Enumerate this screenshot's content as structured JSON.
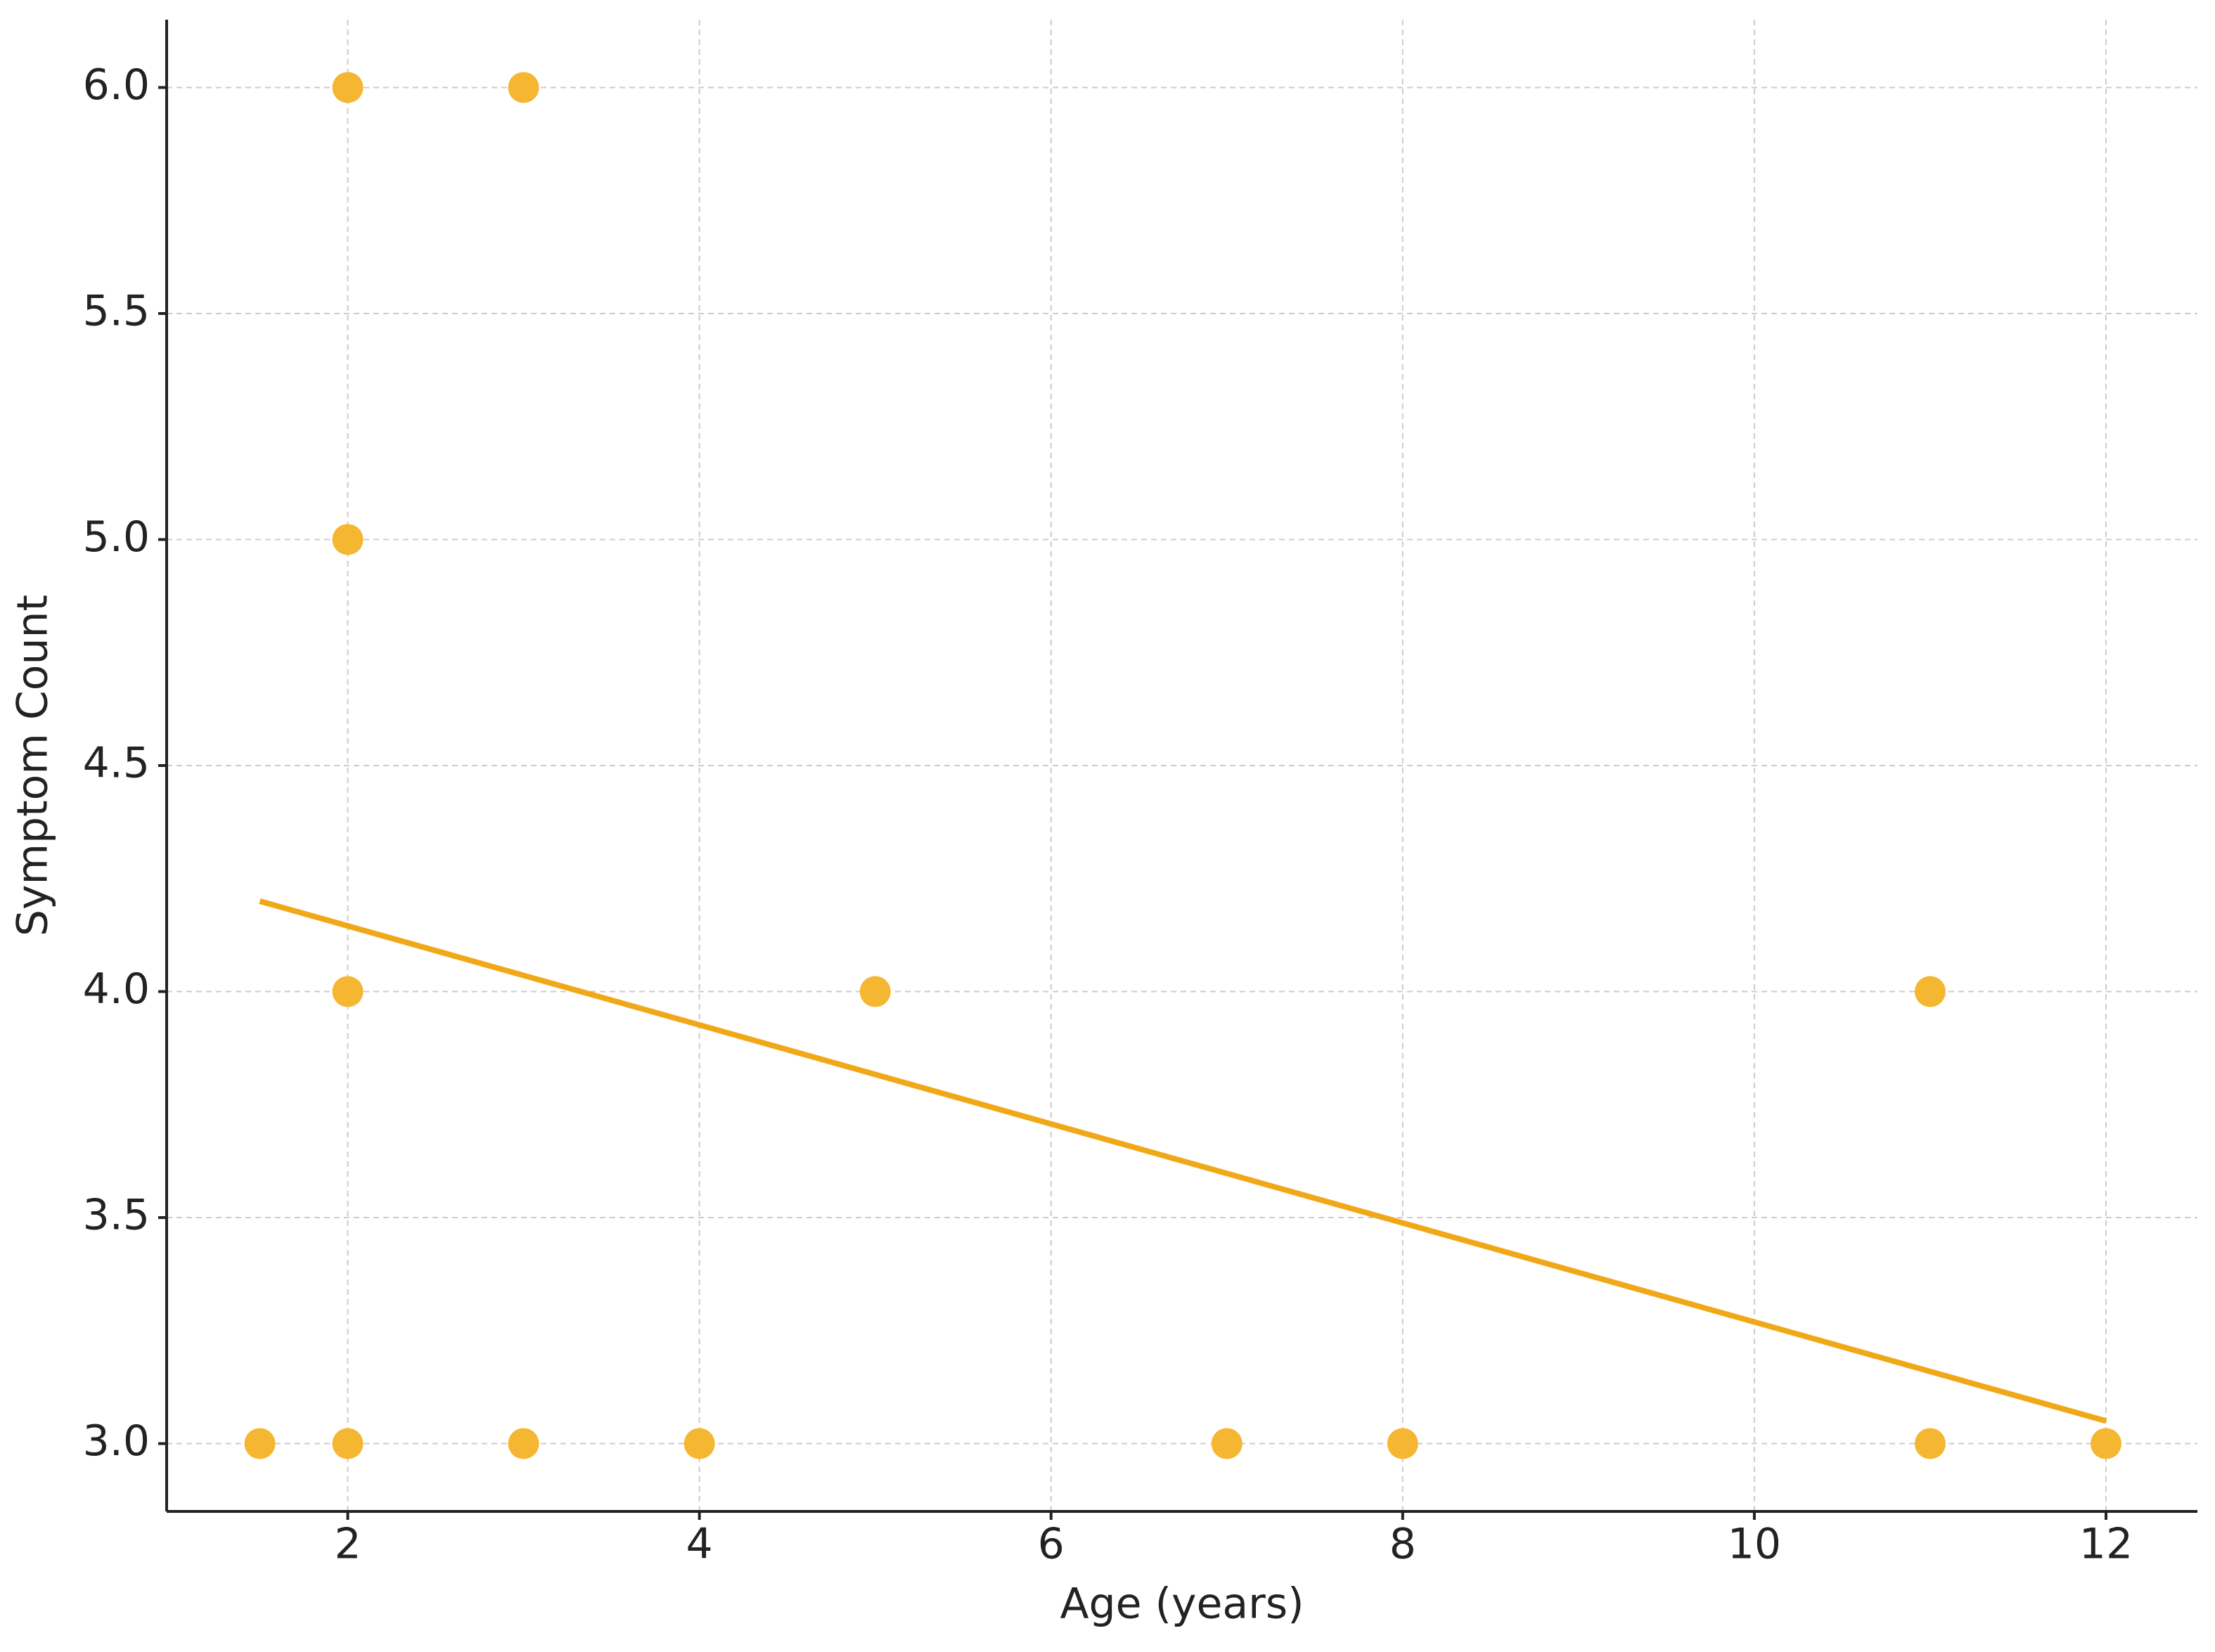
{
  "chart_data": {
    "type": "scatter",
    "xlabel": "Age (years)",
    "ylabel": "Symptom Count",
    "x": [
      1.5,
      2,
      2,
      2,
      2,
      3,
      3,
      4,
      5,
      7,
      8,
      11,
      11,
      12
    ],
    "values": [
      3,
      3,
      4,
      5,
      6,
      6,
      3,
      3,
      4,
      3,
      3,
      4,
      3,
      3
    ],
    "color": "#f5b731",
    "trendline": {
      "x": [
        1.5,
        12
      ],
      "values": [
        4.2,
        3.05
      ],
      "color": "#f0a818"
    },
    "xlim": [
      0.97,
      12.52
    ],
    "ylim": [
      2.85,
      6.15
    ],
    "xticks": [
      2,
      4,
      6,
      8,
      10,
      12
    ],
    "yticks": [
      {
        "value": 3,
        "label": "3.0"
      },
      {
        "value": 3.5,
        "label": "3.5"
      },
      {
        "value": 4,
        "label": "4.0"
      },
      {
        "value": 4.5,
        "label": "4.5"
      },
      {
        "value": 5,
        "label": "5.0"
      },
      {
        "value": 5.5,
        "label": "5.5"
      },
      {
        "value": 6,
        "label": "6.0"
      }
    ],
    "grid": true
  }
}
